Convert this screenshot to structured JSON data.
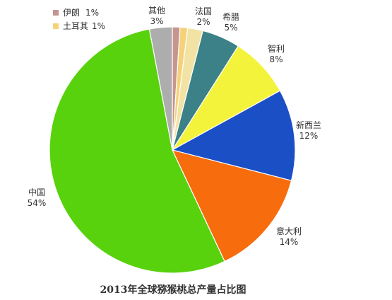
{
  "chart_data": {
    "type": "pie",
    "title": "2013年全球猕猴桃总产量占比图",
    "slices": [
      {
        "label": "伊朗",
        "value": 1,
        "percent_label": "1%",
        "color": "#C6958F"
      },
      {
        "label": "土耳其",
        "value": 1,
        "percent_label": "1%",
        "color": "#F5D27A"
      },
      {
        "label": "法国",
        "value": 2,
        "percent_label": "2%",
        "color": "#F2E3A4"
      },
      {
        "label": "希腊",
        "value": 5,
        "percent_label": "5%",
        "color": "#3B8187"
      },
      {
        "label": "智利",
        "value": 8,
        "percent_label": "8%",
        "color": "#F4F33C"
      },
      {
        "label": "新西兰",
        "value": 12,
        "percent_label": "12%",
        "color": "#1B4FC6"
      },
      {
        "label": "意大利",
        "value": 14,
        "percent_label": "14%",
        "color": "#F76C0C"
      },
      {
        "label": "中国",
        "value": 54,
        "percent_label": "54%",
        "color": "#58D20C"
      },
      {
        "label": "其他",
        "value": 3,
        "percent_label": "3%",
        "color": "#ADADAD"
      }
    ],
    "legend": {
      "placement": "top-left",
      "entries": [
        {
          "label": "伊朗",
          "value_text": "1%",
          "color": "#C6958F"
        },
        {
          "label": "土耳其",
          "value_text": "1%",
          "color": "#F5D27A"
        }
      ]
    }
  }
}
